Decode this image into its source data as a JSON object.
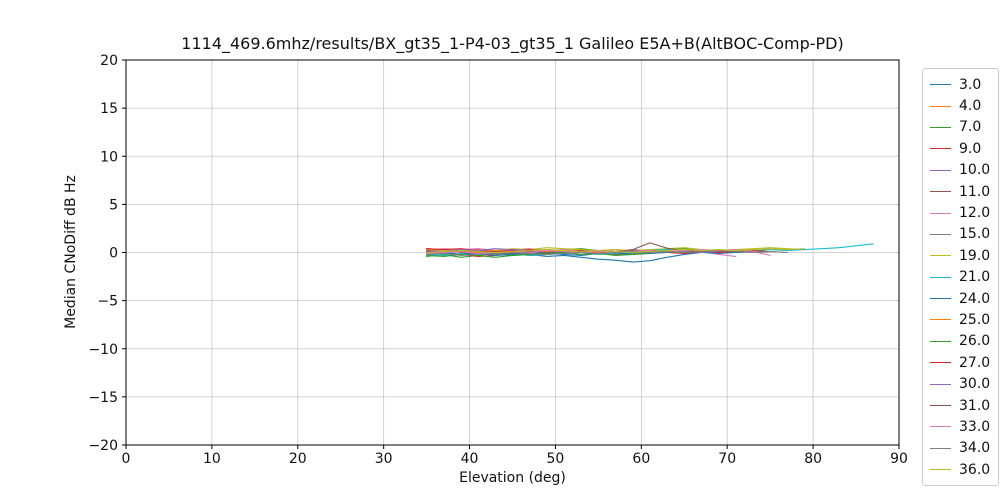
{
  "chart_data": {
    "type": "line",
    "title": "1114_469.6mhz/results/BX_gt35_1-P4-03_gt35_1 Galileo E5A+B(AltBOC-Comp-PD)",
    "xlabel": "Elevation (deg)",
    "ylabel": "Median CNoDiff dB Hz",
    "xlim": [
      0,
      90
    ],
    "ylim": [
      -20,
      20
    ],
    "xticks": [
      0,
      10,
      20,
      30,
      40,
      50,
      60,
      70,
      80,
      90
    ],
    "xtick_labels": [
      "0",
      "10",
      "20",
      "30",
      "40",
      "50",
      "60",
      "70",
      "80",
      "90"
    ],
    "yticks": [
      -20,
      -15,
      -10,
      -5,
      0,
      5,
      10,
      15,
      20
    ],
    "ytick_labels": [
      "−20",
      "−15",
      "−10",
      "−5",
      "0",
      "5",
      "10",
      "15",
      "20"
    ],
    "grid": true,
    "grid_color": "#c6c6c6",
    "spine_color": "#000000",
    "legend_position": "outside-right",
    "x": [
      35,
      37,
      39,
      41,
      43,
      45,
      47,
      49,
      51,
      53,
      55,
      57,
      59,
      61,
      63,
      65,
      67,
      69,
      71,
      73,
      75,
      77,
      79,
      81,
      83,
      85,
      87
    ],
    "series": [
      {
        "name": "3.0",
        "color": "#1f77b4",
        "values": [
          0.3,
          0.1,
          0.2,
          -0.1,
          0.0,
          0.1,
          -0.2,
          -0.4,
          -0.3,
          -0.5,
          -0.7,
          -0.8,
          -1.0,
          -0.85,
          -0.5,
          -0.2,
          0.0,
          0.1,
          0.0,
          0.1
        ]
      },
      {
        "name": "4.0",
        "color": "#ff7f0e",
        "values": [
          0.4,
          0.3,
          0.1,
          0.3,
          0.2,
          0.0,
          0.2,
          0.1,
          0.3,
          0.2,
          0.1,
          0.0,
          0.2,
          0.1,
          0.0,
          0.2,
          0.1,
          0.2,
          0.1,
          0.2
        ]
      },
      {
        "name": "7.0",
        "color": "#2ca02c",
        "values": [
          -0.4,
          -0.2,
          -0.5,
          -0.3,
          -0.1,
          -0.3,
          -0.2,
          0.0,
          0.3,
          0.4,
          0.2,
          0.0,
          -0.1,
          0.0,
          0.3,
          0.4,
          0.2,
          0.1,
          0.2,
          0.1
        ]
      },
      {
        "name": "9.0",
        "color": "#d62728",
        "values": [
          0.2,
          0.0,
          -0.2,
          -0.4,
          -0.3,
          -0.1,
          -0.3,
          -0.2,
          0.0,
          0.1,
          -0.1,
          -0.2,
          0.0,
          0.1,
          0.0,
          -0.1,
          0.1,
          0.0,
          0.1,
          0.0,
          0.1
        ]
      },
      {
        "name": "10.0",
        "color": "#9467bd",
        "values": [
          0.1,
          0.3,
          0.2,
          0.4,
          0.2,
          0.3,
          0.1,
          0.2,
          0.0,
          0.1,
          0.2,
          0.1,
          0.3,
          0.2,
          0.1,
          0.0,
          0.2,
          0.1,
          0.0,
          0.1
        ]
      },
      {
        "name": "11.0",
        "color": "#8c564b",
        "values": [
          0.3,
          0.2,
          0.0,
          -0.2,
          0.0,
          0.2,
          0.1,
          -0.1,
          0.0,
          0.2,
          0.0,
          -0.2,
          -0.1,
          0.1,
          0.2,
          0.1,
          0.0,
          0.1,
          0.2,
          0.1
        ]
      },
      {
        "name": "12.0",
        "color": "#e377c2",
        "values": [
          0.2,
          0.4,
          0.3,
          0.4,
          0.2,
          0.3,
          0.4,
          0.2,
          0.3,
          0.1,
          0.2,
          0.3,
          0.1,
          0.2,
          0.3,
          0.2,
          0.1,
          -0.2,
          -0.4
        ]
      },
      {
        "name": "15.0",
        "color": "#7f7f7f",
        "values": [
          0.0,
          -0.1,
          0.1,
          0.0,
          -0.2,
          -0.1,
          0.0,
          0.1,
          -0.1,
          0.0,
          0.1,
          0.0,
          -0.1,
          0.0,
          0.1,
          0.0,
          0.1,
          0.0,
          0.1,
          0.0,
          0.1,
          0.0
        ]
      },
      {
        "name": "19.0",
        "color": "#bcbd22",
        "values": [
          0.4,
          0.2,
          0.3,
          0.1,
          0.2,
          0.4,
          0.3,
          0.5,
          0.4,
          0.3,
          0.2,
          0.3,
          0.2,
          0.3,
          0.4,
          0.5,
          0.3,
          0.2,
          0.3,
          0.4,
          0.5,
          0.4,
          0.3
        ]
      },
      {
        "name": "21.0",
        "color": "#17becf",
        "values": [
          -0.2,
          -0.3,
          -0.1,
          -0.2,
          0.0,
          -0.1,
          -0.3,
          -0.2,
          -0.1,
          0.0,
          -0.2,
          -0.1,
          0.0,
          0.2,
          0.3,
          0.2,
          0.1,
          0.2,
          0.1,
          0.2,
          0.3,
          0.2,
          0.3,
          0.4,
          0.5,
          0.7,
          0.9
        ]
      },
      {
        "name": "24.0",
        "color": "#1f77b4",
        "values": [
          -0.1,
          0.0,
          -0.2,
          -0.1,
          -0.3,
          -0.2,
          0.0,
          -0.1,
          -0.2,
          -0.3,
          -0.1,
          0.0,
          -0.2,
          -0.1,
          0.0,
          0.1,
          0.0,
          -0.1,
          0.0,
          0.1
        ]
      },
      {
        "name": "25.0",
        "color": "#ff7f0e",
        "values": [
          0.3,
          0.1,
          0.2,
          0.0,
          0.1,
          0.2,
          0.0,
          0.1,
          0.2,
          0.1,
          0.0,
          0.1,
          0.2,
          0.0,
          0.1,
          0.0,
          0.1,
          0.0
        ]
      },
      {
        "name": "26.0",
        "color": "#2ca02c",
        "values": [
          -0.3,
          -0.4,
          -0.2,
          -0.3,
          -0.5,
          -0.3,
          -0.2,
          -0.1,
          0.0,
          -0.2,
          -0.1,
          -0.3,
          -0.2,
          0.0,
          0.1,
          0.0,
          0.1,
          0.2,
          0.1,
          0.2
        ]
      },
      {
        "name": "27.0",
        "color": "#d62728",
        "values": [
          0.4,
          0.3,
          0.4,
          0.2,
          0.1,
          0.2,
          0.3,
          0.2,
          0.1,
          0.2,
          0.1,
          0.0,
          0.1,
          0.2,
          0.1,
          0.2,
          0.1,
          0.0,
          0.1,
          0.2,
          0.1
        ]
      },
      {
        "name": "30.0",
        "color": "#9467bd",
        "values": [
          0.2,
          0.1,
          0.3,
          0.2,
          0.4,
          0.3,
          0.2,
          0.3,
          0.2,
          0.1,
          0.2,
          0.1,
          0.2,
          0.1,
          0.2,
          0.1,
          0.0,
          0.1
        ]
      },
      {
        "name": "31.0",
        "color": "#8c564b",
        "values": [
          0.1,
          0.0,
          0.2,
          0.1,
          0.0,
          -0.1,
          0.1,
          0.0,
          0.1,
          0.0,
          -0.1,
          0.0,
          0.3,
          1.0,
          0.45,
          0.2,
          0.1,
          0.2,
          0.1,
          0.2
        ]
      },
      {
        "name": "33.0",
        "color": "#e377c2",
        "values": [
          -0.1,
          0.0,
          0.1,
          -0.1,
          0.0,
          0.1,
          0.0,
          0.2,
          0.1,
          0.0,
          0.1,
          0.0,
          0.1,
          0.2,
          0.1,
          0.2,
          0.3,
          0.2,
          0.3,
          0.1,
          -0.3
        ]
      },
      {
        "name": "34.0",
        "color": "#7f7f7f",
        "values": [
          -0.2,
          -0.1,
          -0.3,
          -0.2,
          -0.1,
          0.0,
          -0.1,
          -0.2,
          -0.1,
          0.0,
          -0.1,
          0.0,
          0.1,
          0.0,
          0.1,
          0.0,
          0.1,
          0.2,
          0.1,
          0.0,
          0.1,
          0.0
        ]
      },
      {
        "name": "36.0",
        "color": "#bcbd22",
        "values": [
          0.0,
          0.1,
          0.2,
          0.1,
          0.0,
          0.1,
          0.2,
          0.3,
          0.2,
          0.1,
          0.2,
          0.1,
          0.0,
          0.1,
          0.2,
          0.3,
          0.2,
          0.3,
          0.2,
          0.3,
          0.4,
          0.3,
          0.4
        ]
      }
    ]
  }
}
